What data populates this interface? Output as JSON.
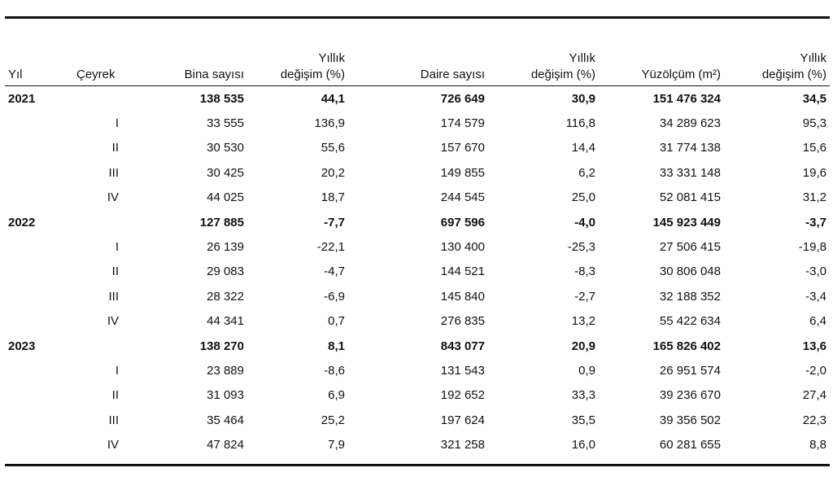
{
  "headers": {
    "year": "Yıl",
    "quarter": "Çeyrek",
    "buildings": "Bina sayısı",
    "buildings_change": [
      "Yıllık",
      "değişim (%)"
    ],
    "dwellings": "Daire sayısı",
    "dwellings_change": [
      "Yıllık",
      "değişim (%)"
    ],
    "area": "Yüzölçüm (m²)",
    "area_change": [
      "Yıllık",
      "değişim (%)"
    ]
  },
  "rows": [
    {
      "year": "2021",
      "quarter": "",
      "buildings": "138 535",
      "buildings_change": "44,1",
      "dwellings": "726 649",
      "dwellings_change": "30,9",
      "area": "151 476 324",
      "area_change": "34,5"
    },
    {
      "year": "",
      "quarter": "I",
      "buildings": "33 555",
      "buildings_change": "136,9",
      "dwellings": "174 579",
      "dwellings_change": "116,8",
      "area": "34 289 623",
      "area_change": "95,3"
    },
    {
      "year": "",
      "quarter": "II",
      "buildings": "30 530",
      "buildings_change": "55,6",
      "dwellings": "157 670",
      "dwellings_change": "14,4",
      "area": "31 774 138",
      "area_change": "15,6"
    },
    {
      "year": "",
      "quarter": "III",
      "buildings": "30 425",
      "buildings_change": "20,2",
      "dwellings": "149 855",
      "dwellings_change": "6,2",
      "area": "33 331 148",
      "area_change": "19,6"
    },
    {
      "year": "",
      "quarter": "IV",
      "buildings": "44 025",
      "buildings_change": "18,7",
      "dwellings": "244 545",
      "dwellings_change": "25,0",
      "area": "52 081 415",
      "area_change": "31,2"
    },
    {
      "year": "2022",
      "quarter": "",
      "buildings": "127 885",
      "buildings_change": "-7,7",
      "dwellings": "697 596",
      "dwellings_change": "-4,0",
      "area": "145 923 449",
      "area_change": "-3,7"
    },
    {
      "year": "",
      "quarter": "I",
      "buildings": "26 139",
      "buildings_change": "-22,1",
      "dwellings": "130 400",
      "dwellings_change": "-25,3",
      "area": "27 506 415",
      "area_change": "-19,8"
    },
    {
      "year": "",
      "quarter": "II",
      "buildings": "29 083",
      "buildings_change": "-4,7",
      "dwellings": "144 521",
      "dwellings_change": "-8,3",
      "area": "30 806 048",
      "area_change": "-3,0"
    },
    {
      "year": "",
      "quarter": "III",
      "buildings": "28 322",
      "buildings_change": "-6,9",
      "dwellings": "145 840",
      "dwellings_change": "-2,7",
      "area": "32 188 352",
      "area_change": "-3,4"
    },
    {
      "year": "",
      "quarter": "IV",
      "buildings": "44 341",
      "buildings_change": "0,7",
      "dwellings": "276 835",
      "dwellings_change": "13,2",
      "area": "55 422 634",
      "area_change": "6,4"
    },
    {
      "year": "2023",
      "quarter": "",
      "buildings": "138 270",
      "buildings_change": "8,1",
      "dwellings": "843 077",
      "dwellings_change": "20,9",
      "area": "165 826 402",
      "area_change": "13,6"
    },
    {
      "year": "",
      "quarter": "I",
      "buildings": "23 889",
      "buildings_change": "-8,6",
      "dwellings": "131 543",
      "dwellings_change": "0,9",
      "area": "26 951 574",
      "area_change": "-2,0"
    },
    {
      "year": "",
      "quarter": "II",
      "buildings": "31 093",
      "buildings_change": "6,9",
      "dwellings": "192 652",
      "dwellings_change": "33,3",
      "area": "39 236 670",
      "area_change": "27,4"
    },
    {
      "year": "",
      "quarter": "III",
      "buildings": "35 464",
      "buildings_change": "25,2",
      "dwellings": "197 624",
      "dwellings_change": "35,5",
      "area": "39 356 502",
      "area_change": "22,3"
    },
    {
      "year": "",
      "quarter": "IV",
      "buildings": "47 824",
      "buildings_change": "7,9",
      "dwellings": "321 258",
      "dwellings_change": "16,0",
      "area": "60 281 655",
      "area_change": "8,8"
    }
  ]
}
